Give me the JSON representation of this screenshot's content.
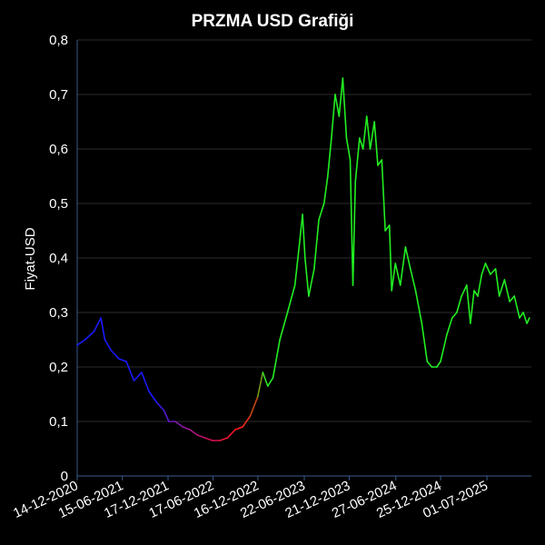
{
  "chart_data": {
    "type": "line",
    "title": "PRZMA USD Grafiği",
    "xlabel": "",
    "ylabel": "Fiyat-USD",
    "ylim": [
      0,
      0.8
    ],
    "xlim": [
      "2020-12-14",
      "2025-12-28"
    ],
    "yticks": [
      0,
      0.1,
      0.2,
      0.3,
      0.4,
      0.5,
      0.6,
      0.7,
      0.8
    ],
    "ytick_labels": [
      "0",
      "0,1",
      "0,2",
      "0,3",
      "0,4",
      "0,5",
      "0,6",
      "0,7",
      "0,8"
    ],
    "xticks": [
      "2020-12-14",
      "2021-06-15",
      "2021-12-17",
      "2022-06-17",
      "2022-12-16",
      "2023-06-22",
      "2023-12-21",
      "2024-06-27",
      "2024-12-25",
      "2025-07-01"
    ],
    "xtick_labels": [
      "14-12-2020",
      "15-06-2021",
      "17-12-2021",
      "17-06-2022",
      "16-12-2022",
      "22-06-2023",
      "21-12-2023",
      "27-06-2024",
      "25-12-2024",
      "01-07-2025"
    ],
    "grid": true,
    "series": [
      {
        "points": [
          [
            "2020-12-14",
            0.24
          ],
          [
            "2021-01-15",
            0.25
          ],
          [
            "2021-02-20",
            0.265
          ],
          [
            "2021-03-20",
            0.29
          ],
          [
            "2021-04-05",
            0.25
          ],
          [
            "2021-05-01",
            0.23
          ],
          [
            "2021-06-01",
            0.215
          ],
          [
            "2021-07-01",
            0.21
          ],
          [
            "2021-08-01",
            0.175
          ],
          [
            "2021-09-01",
            0.19
          ],
          [
            "2021-10-01",
            0.155
          ],
          [
            "2021-11-01",
            0.135
          ],
          [
            "2021-12-01",
            0.12
          ],
          [
            "2021-12-20",
            0.1
          ],
          [
            "2022-01-15",
            0.1
          ],
          [
            "2022-02-15",
            0.09
          ],
          [
            "2022-03-15",
            0.085
          ],
          [
            "2022-04-15",
            0.075
          ],
          [
            "2022-05-15",
            0.07
          ],
          [
            "2022-06-15",
            0.065
          ],
          [
            "2022-07-15",
            0.065
          ],
          [
            "2022-08-15",
            0.07
          ],
          [
            "2022-09-15",
            0.085
          ],
          [
            "2022-10-15",
            0.09
          ],
          [
            "2022-11-15",
            0.11
          ],
          [
            "2022-12-15",
            0.145
          ],
          [
            "2023-01-05",
            0.19
          ],
          [
            "2023-01-25",
            0.165
          ],
          [
            "2023-02-15",
            0.18
          ],
          [
            "2023-03-15",
            0.25
          ],
          [
            "2023-04-15",
            0.3
          ],
          [
            "2023-05-15",
            0.35
          ],
          [
            "2023-06-01",
            0.42
          ],
          [
            "2023-06-15",
            0.48
          ],
          [
            "2023-06-25",
            0.4
          ],
          [
            "2023-07-10",
            0.33
          ],
          [
            "2023-08-01",
            0.38
          ],
          [
            "2023-08-20",
            0.47
          ],
          [
            "2023-09-10",
            0.5
          ],
          [
            "2023-09-25",
            0.55
          ],
          [
            "2023-10-10",
            0.62
          ],
          [
            "2023-10-25",
            0.7
          ],
          [
            "2023-11-10",
            0.66
          ],
          [
            "2023-11-25",
            0.73
          ],
          [
            "2023-12-10",
            0.62
          ],
          [
            "2023-12-25",
            0.58
          ],
          [
            "2024-01-05",
            0.35
          ],
          [
            "2024-01-15",
            0.54
          ],
          [
            "2024-02-01",
            0.62
          ],
          [
            "2024-02-15",
            0.6
          ],
          [
            "2024-03-01",
            0.66
          ],
          [
            "2024-03-15",
            0.6
          ],
          [
            "2024-04-01",
            0.65
          ],
          [
            "2024-04-15",
            0.57
          ],
          [
            "2024-05-01",
            0.58
          ],
          [
            "2024-05-15",
            0.45
          ],
          [
            "2024-06-01",
            0.46
          ],
          [
            "2024-06-10",
            0.34
          ],
          [
            "2024-06-25",
            0.39
          ],
          [
            "2024-07-15",
            0.35
          ],
          [
            "2024-08-05",
            0.42
          ],
          [
            "2024-08-25",
            0.38
          ],
          [
            "2024-09-15",
            0.34
          ],
          [
            "2024-10-10",
            0.28
          ],
          [
            "2024-11-01",
            0.21
          ],
          [
            "2024-11-20",
            0.2
          ],
          [
            "2024-12-10",
            0.2
          ],
          [
            "2024-12-25",
            0.21
          ],
          [
            "2025-01-20",
            0.26
          ],
          [
            "2025-02-10",
            0.29
          ],
          [
            "2025-03-01",
            0.3
          ],
          [
            "2025-03-20",
            0.33
          ],
          [
            "2025-04-10",
            0.35
          ],
          [
            "2025-04-25",
            0.28
          ],
          [
            "2025-05-10",
            0.34
          ],
          [
            "2025-05-25",
            0.33
          ],
          [
            "2025-06-10",
            0.37
          ],
          [
            "2025-06-25",
            0.39
          ],
          [
            "2025-07-15",
            0.37
          ],
          [
            "2025-08-05",
            0.38
          ],
          [
            "2025-08-20",
            0.33
          ],
          [
            "2025-09-10",
            0.36
          ],
          [
            "2025-10-01",
            0.32
          ],
          [
            "2025-10-20",
            0.33
          ],
          [
            "2025-11-10",
            0.29
          ],
          [
            "2025-11-25",
            0.3
          ],
          [
            "2025-12-10",
            0.28
          ],
          [
            "2025-12-20",
            0.29
          ]
        ],
        "color_stops": [
          [
            "2020-12-14",
            "#1a1aff"
          ],
          [
            "2021-10-20",
            "#1a1aff"
          ],
          [
            "2022-01-15",
            "#7a1ab5"
          ],
          [
            "2022-06-01",
            "#d0105a"
          ],
          [
            "2022-10-01",
            "#ff1a1a"
          ],
          [
            "2022-12-01",
            "#c44a10"
          ],
          [
            "2023-01-20",
            "#22ee22"
          ],
          [
            "2025-12-28",
            "#22ee22"
          ]
        ]
      }
    ]
  }
}
